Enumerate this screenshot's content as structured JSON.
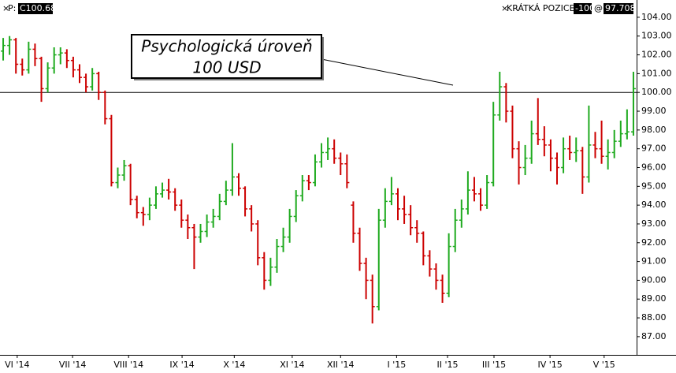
{
  "header": {
    "symbol_label": "P:",
    "symbol_value": "C100.68",
    "position_label": "KRÁTKÁ POZICE",
    "position_qty": "-100",
    "at": "@",
    "position_price": "97.708"
  },
  "chart_data": {
    "type": "ohlc",
    "annotation": [
      "Psychologická úroveň",
      "100 USD"
    ],
    "hline": 100,
    "up_color": "#1faa1f",
    "down_color": "#cc0000",
    "xlim": [
      0,
      100
    ],
    "xticks": [
      {
        "value": 2.7,
        "label": "VI '14"
      },
      {
        "value": 11.4,
        "label": "VII '14"
      },
      {
        "value": 20.2,
        "label": "VIII '14"
      },
      {
        "value": 28.6,
        "label": "IX '14"
      },
      {
        "value": 36.8,
        "label": "X '14"
      },
      {
        "value": 45.9,
        "label": "XI '14"
      },
      {
        "value": 53.5,
        "label": "XII '14"
      },
      {
        "value": 62.3,
        "label": "I '15"
      },
      {
        "value": 70.3,
        "label": "II '15"
      },
      {
        "value": 77.6,
        "label": "III '15"
      },
      {
        "value": 86.4,
        "label": "IV '15"
      },
      {
        "value": 94.9,
        "label": "V '15"
      }
    ],
    "ylim": [
      86.03,
      104.92
    ],
    "yticks": [
      {
        "value": 87,
        "label": "87.00"
      },
      {
        "value": 88,
        "label": "88.00"
      },
      {
        "value": 89,
        "label": "89.00"
      },
      {
        "value": 90,
        "label": "90.00"
      },
      {
        "value": 91,
        "label": "91.00"
      },
      {
        "value": 92,
        "label": "92.00"
      },
      {
        "value": 93,
        "label": "93.00"
      },
      {
        "value": 94,
        "label": "94.00"
      },
      {
        "value": 95,
        "label": "95.00"
      },
      {
        "value": 96,
        "label": "96.00"
      },
      {
        "value": 97,
        "label": "97.00"
      },
      {
        "value": 98,
        "label": "98.00"
      },
      {
        "value": 99,
        "label": "99.00"
      },
      {
        "value": 100,
        "label": "100.00"
      },
      {
        "value": 101,
        "label": "101.00"
      },
      {
        "value": 102,
        "label": "102.00"
      },
      {
        "value": 103,
        "label": "103.00"
      },
      {
        "value": 104,
        "label": "104.00"
      }
    ],
    "ohlc": [
      [
        102.2,
        102.9,
        101.7,
        102.5
      ],
      [
        102.5,
        103.0,
        102.0,
        102.8
      ],
      [
        102.8,
        102.9,
        101.0,
        101.5
      ],
      [
        101.5,
        101.8,
        100.9,
        101.2
      ],
      [
        101.2,
        102.7,
        101.0,
        102.3
      ],
      [
        102.3,
        102.6,
        101.4,
        101.8
      ],
      [
        101.8,
        101.9,
        99.5,
        100.2
      ],
      [
        100.2,
        101.6,
        100.0,
        101.3
      ],
      [
        101.3,
        102.4,
        101.0,
        102.0
      ],
      [
        102.0,
        102.4,
        101.5,
        102.1
      ],
      [
        102.1,
        102.3,
        101.3,
        101.7
      ],
      [
        101.7,
        101.9,
        100.8,
        101.2
      ],
      [
        101.2,
        101.5,
        100.5,
        100.8
      ],
      [
        100.8,
        101.0,
        100.0,
        100.3
      ],
      [
        100.3,
        101.3,
        100.1,
        101.0
      ],
      [
        101.0,
        101.1,
        99.6,
        100.0
      ],
      [
        100.0,
        100.1,
        98.3,
        98.6
      ],
      [
        98.6,
        98.8,
        95.0,
        95.2
      ],
      [
        95.2,
        96.0,
        94.9,
        95.6
      ],
      [
        95.6,
        96.4,
        95.3,
        96.1
      ],
      [
        96.1,
        96.2,
        94.0,
        94.3
      ],
      [
        94.3,
        94.5,
        93.3,
        93.6
      ],
      [
        93.6,
        93.9,
        92.9,
        93.5
      ],
      [
        93.5,
        94.4,
        93.2,
        94.0
      ],
      [
        94.0,
        95.0,
        93.8,
        94.6
      ],
      [
        94.6,
        95.2,
        94.4,
        94.8
      ],
      [
        94.8,
        95.4,
        94.3,
        94.7
      ],
      [
        94.7,
        94.9,
        93.7,
        94.0
      ],
      [
        94.0,
        94.3,
        92.8,
        93.2
      ],
      [
        93.2,
        93.5,
        92.2,
        92.8
      ],
      [
        92.8,
        93.0,
        90.6,
        92.3
      ],
      [
        92.3,
        93.0,
        92.0,
        92.6
      ],
      [
        92.6,
        93.5,
        92.3,
        93.1
      ],
      [
        93.1,
        93.8,
        92.8,
        93.4
      ],
      [
        93.4,
        94.6,
        93.2,
        94.2
      ],
      [
        94.2,
        95.3,
        94.0,
        94.8
      ],
      [
        94.8,
        97.3,
        94.5,
        95.5
      ],
      [
        95.5,
        95.7,
        94.5,
        94.9
      ],
      [
        94.9,
        95.0,
        93.4,
        93.8
      ],
      [
        93.8,
        94.0,
        92.6,
        93.0
      ],
      [
        93.0,
        93.2,
        90.8,
        91.2
      ],
      [
        91.2,
        91.5,
        89.5,
        90.0
      ],
      [
        90.0,
        91.2,
        89.7,
        90.7
      ],
      [
        90.7,
        92.2,
        90.4,
        91.8
      ],
      [
        91.8,
        92.8,
        91.5,
        92.3
      ],
      [
        92.3,
        93.8,
        92.0,
        93.4
      ],
      [
        93.4,
        94.8,
        93.1,
        94.5
      ],
      [
        94.5,
        95.6,
        94.2,
        95.3
      ],
      [
        95.3,
        95.6,
        94.8,
        95.2
      ],
      [
        95.2,
        96.7,
        95.0,
        96.3
      ],
      [
        96.3,
        97.3,
        96.0,
        96.8
      ],
      [
        96.8,
        97.6,
        96.4,
        97.0
      ],
      [
        97.0,
        97.5,
        96.2,
        96.5
      ],
      [
        96.5,
        96.8,
        95.6,
        96.2
      ],
      [
        96.2,
        96.7,
        94.9,
        95.2
      ],
      [
        94.0,
        94.2,
        92.0,
        92.5
      ],
      [
        92.5,
        92.8,
        90.5,
        90.9
      ],
      [
        90.9,
        91.2,
        89.0,
        90.0
      ],
      [
        90.0,
        90.3,
        87.7,
        88.6
      ],
      [
        88.6,
        93.8,
        88.4,
        93.2
      ],
      [
        93.2,
        94.9,
        92.8,
        94.2
      ],
      [
        94.2,
        95.5,
        94.0,
        94.6
      ],
      [
        94.6,
        94.9,
        93.2,
        93.8
      ],
      [
        93.8,
        94.5,
        93.0,
        93.5
      ],
      [
        93.5,
        94.0,
        92.4,
        92.8
      ],
      [
        92.8,
        93.2,
        92.0,
        92.5
      ],
      [
        92.5,
        92.6,
        90.8,
        91.3
      ],
      [
        91.3,
        91.6,
        90.2,
        90.6
      ],
      [
        90.6,
        90.9,
        89.5,
        90.0
      ],
      [
        90.0,
        90.3,
        88.8,
        89.3
      ],
      [
        89.3,
        92.5,
        89.1,
        91.8
      ],
      [
        91.8,
        93.8,
        91.5,
        93.2
      ],
      [
        93.2,
        94.3,
        92.8,
        93.8
      ],
      [
        93.8,
        95.8,
        93.5,
        94.8
      ],
      [
        94.8,
        95.5,
        94.2,
        94.6
      ],
      [
        94.6,
        94.9,
        93.7,
        94.0
      ],
      [
        94.0,
        95.6,
        93.8,
        95.2
      ],
      [
        95.2,
        99.5,
        95.0,
        98.8
      ],
      [
        98.8,
        101.1,
        98.5,
        100.3
      ],
      [
        100.3,
        100.5,
        98.4,
        99.0
      ],
      [
        99.0,
        99.3,
        96.5,
        97.0
      ],
      [
        97.0,
        97.4,
        95.1,
        96.0
      ],
      [
        96.0,
        97.2,
        95.6,
        96.5
      ],
      [
        96.5,
        98.5,
        96.2,
        97.8
      ],
      [
        97.8,
        99.7,
        97.2,
        97.5
      ],
      [
        97.5,
        98.2,
        96.6,
        97.2
      ],
      [
        97.2,
        97.5,
        95.8,
        96.5
      ],
      [
        96.5,
        96.8,
        95.1,
        96.0
      ],
      [
        96.0,
        97.6,
        95.7,
        97.0
      ],
      [
        97.0,
        97.7,
        96.4,
        96.8
      ],
      [
        96.8,
        97.6,
        96.3,
        96.9
      ],
      [
        96.9,
        97.1,
        94.6,
        95.5
      ],
      [
        95.5,
        99.3,
        95.2,
        97.2
      ],
      [
        97.2,
        97.9,
        96.5,
        97.0
      ],
      [
        97.0,
        98.5,
        96.2,
        96.6
      ],
      [
        96.6,
        97.5,
        95.9,
        96.8
      ],
      [
        96.8,
        98.0,
        96.5,
        97.4
      ],
      [
        97.4,
        98.5,
        97.1,
        97.8
      ],
      [
        97.8,
        99.1,
        97.5,
        97.9
      ],
      [
        97.9,
        101.1,
        97.7,
        100.2
      ]
    ]
  }
}
